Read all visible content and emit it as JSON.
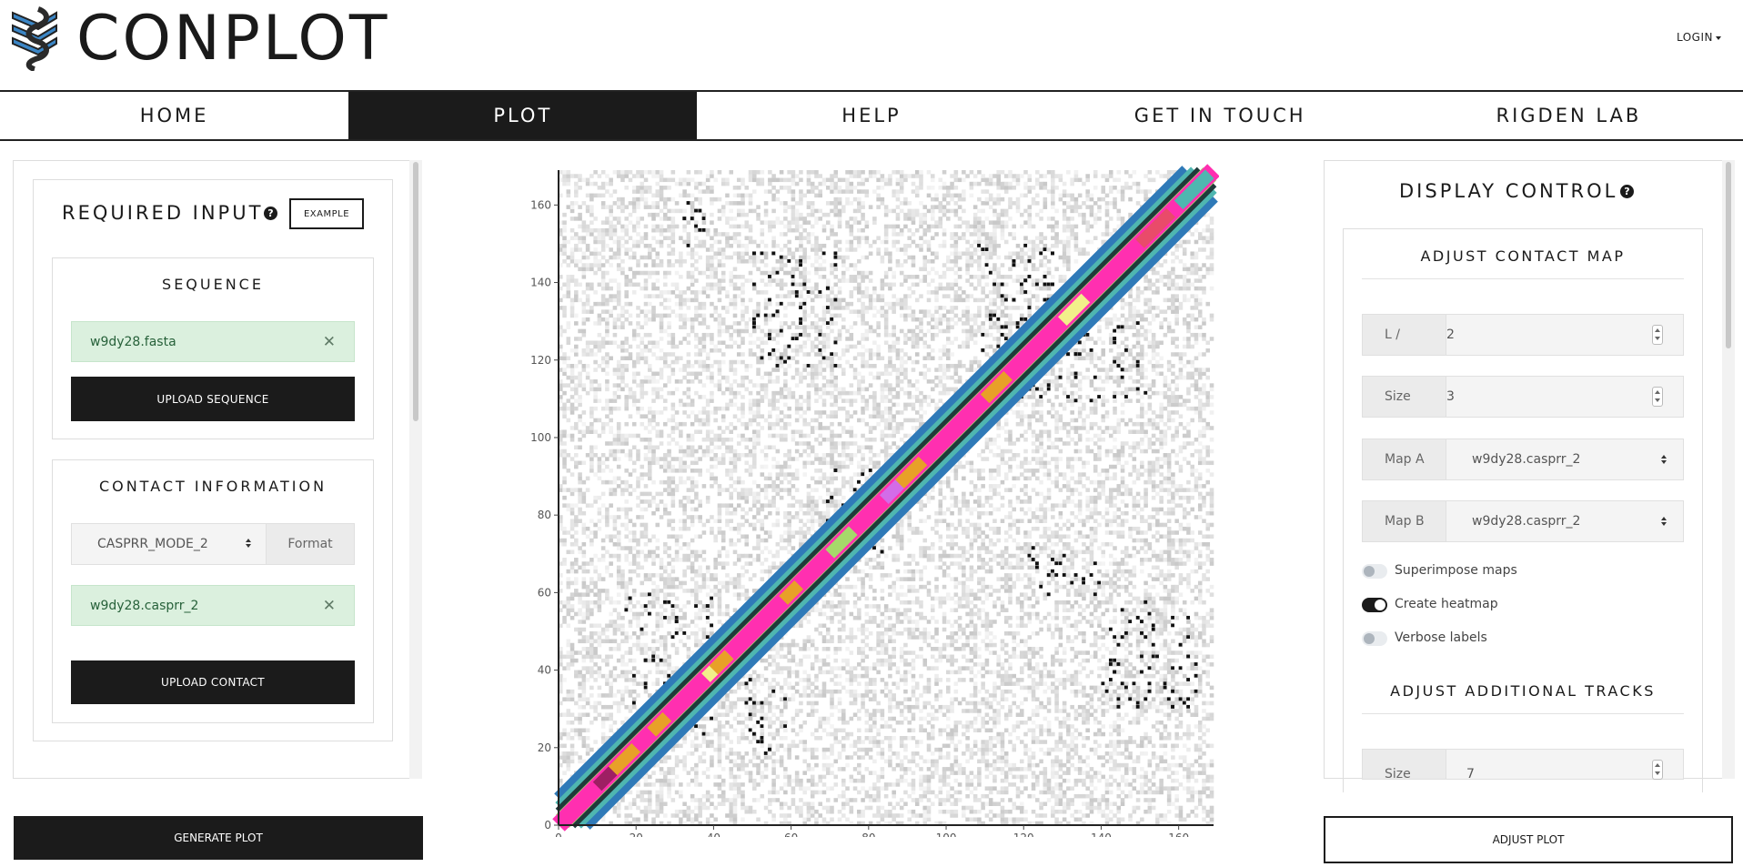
{
  "header": {
    "brand": "CONPLOT",
    "login_label": "LOGIN"
  },
  "nav": {
    "items": [
      {
        "label": "HOME"
      },
      {
        "label": "PLOT"
      },
      {
        "label": "HELP"
      },
      {
        "label": "GET IN TOUCH"
      },
      {
        "label": "RIGDEN LAB"
      }
    ],
    "active": "PLOT"
  },
  "required_input": {
    "title": "REQUIRED INPUT",
    "example_label": "EXAMPLE",
    "sequence": {
      "title": "SEQUENCE",
      "file_name": "w9dy28.fasta",
      "upload_label": "UPLOAD SEQUENCE"
    },
    "contact": {
      "title": "CONTACT INFORMATION",
      "format_value": "CASPRR_MODE_2",
      "format_label": "Format",
      "file_name": "w9dy28.casprr_2",
      "upload_label": "UPLOAD CONTACT"
    },
    "generate_label": "GENERATE PLOT"
  },
  "display_control": {
    "title": "DISPLAY CONTROL",
    "adjust_contact_map": {
      "title": "ADJUST CONTACT MAP",
      "l_label": "L /",
      "l_value": "2",
      "size_label": "Size",
      "size_value": "3",
      "map_a_label": "Map A",
      "map_a_value": "w9dy28.casprr_2",
      "map_b_label": "Map B",
      "map_b_value": "w9dy28.casprr_2",
      "superimpose_label": "Superimpose maps",
      "superimpose_on": false,
      "heatmap_label": "Create heatmap",
      "heatmap_on": true,
      "verbose_label": "Verbose labels",
      "verbose_on": false
    },
    "adjust_tracks": {
      "title": "ADJUST ADDITIONAL TRACKS",
      "size_label": "Size",
      "size_value": "7"
    },
    "adjust_label": "ADJUST PLOT"
  },
  "chart_data": {
    "type": "heatmap",
    "x_ticks": [
      0,
      20,
      40,
      60,
      80,
      100,
      120,
      140,
      160
    ],
    "y_ticks": [
      0,
      20,
      40,
      60,
      80,
      100,
      120,
      140,
      160
    ],
    "xlim": [
      0,
      169
    ],
    "ylim": [
      0,
      169
    ],
    "diagonal_track_colors": [
      "#2f7ab8",
      "#4fb6b0",
      "#a6d96a",
      "#f2ef8a",
      "#e8a028",
      "#ff2fb0",
      "#1f3a3a",
      "#9e1f63",
      "#e94b6a",
      "#d36ce8"
    ],
    "contact_clusters": [
      {
        "x": [
          30,
          38
        ],
        "y": [
          148,
          162
        ]
      },
      {
        "x": [
          50,
          72
        ],
        "y": [
          118,
          150
        ]
      },
      {
        "x": [
          108,
          128
        ],
        "y": [
          122,
          152
        ]
      },
      {
        "x": [
          118,
          152
        ],
        "y": [
          108,
          132
        ]
      },
      {
        "x": [
          17,
          40
        ],
        "y": [
          48,
          60
        ]
      },
      {
        "x": [
          19,
          40
        ],
        "y": [
          20,
          44
        ]
      },
      {
        "x": [
          48,
          60
        ],
        "y": [
          18,
          38
        ]
      },
      {
        "x": [
          121,
          140
        ],
        "y": [
          58,
          72
        ]
      },
      {
        "x": [
          140,
          165
        ],
        "y": [
          30,
          58
        ]
      },
      {
        "x": [
          68,
          84
        ],
        "y": [
          68,
          92
        ]
      }
    ]
  }
}
